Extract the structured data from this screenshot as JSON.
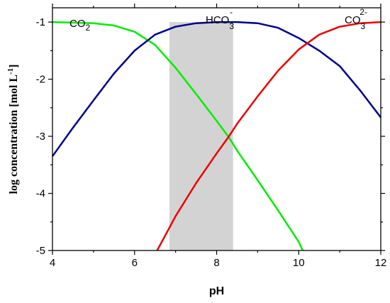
{
  "chart_data": {
    "type": "line",
    "xlabel": "pH",
    "ylabel": {
      "text": "log concentration [mol L",
      "superscript": "-1",
      "suffix": "]"
    },
    "xlim": [
      4,
      12
    ],
    "ylim": [
      -5,
      -0.75
    ],
    "xticks": [
      4,
      6,
      8,
      10,
      12
    ],
    "yticks": [
      -1,
      -2,
      -3,
      -4,
      -5
    ],
    "grid": false,
    "shaded_region": {
      "x": [
        6.85,
        8.4
      ],
      "color": "#d3d3d3"
    },
    "labels": [
      {
        "key": "co2",
        "base": "CO",
        "sub": "2",
        "sup": ""
      },
      {
        "key": "hco3",
        "base": "HCO",
        "sub": "3",
        "sup": "-"
      },
      {
        "key": "co3",
        "base": "CO",
        "sub": "3",
        "sup": "2-"
      }
    ],
    "series": [
      {
        "key": "co2",
        "color": "#00ee00",
        "x": [
          4.0,
          4.5,
          5.0,
          5.5,
          6.0,
          6.5,
          7.0,
          7.5,
          8.0,
          8.3,
          8.5,
          9.0,
          9.5,
          10.0,
          10.1
        ],
        "y": [
          -1.0,
          -1.01,
          -1.02,
          -1.06,
          -1.17,
          -1.4,
          -1.8,
          -2.26,
          -2.73,
          -3.02,
          -3.25,
          -3.77,
          -4.3,
          -4.85,
          -5.0
        ]
      },
      {
        "key": "hco3",
        "color": "#00008b",
        "x": [
          4.0,
          4.5,
          5.0,
          5.5,
          6.0,
          6.5,
          7.0,
          7.5,
          8.0,
          8.5,
          9.0,
          9.5,
          10.0,
          10.5,
          11.0,
          11.5,
          12.0
        ],
        "y": [
          -3.35,
          -2.85,
          -2.37,
          -1.9,
          -1.5,
          -1.22,
          -1.08,
          -1.02,
          -1.0,
          -1.0,
          -1.02,
          -1.1,
          -1.28,
          -1.5,
          -1.77,
          -2.2,
          -2.67
        ]
      },
      {
        "key": "co3",
        "color": "#ee0000",
        "x": [
          6.55,
          7.0,
          7.5,
          8.0,
          8.3,
          8.5,
          9.0,
          9.5,
          10.0,
          10.5,
          11.0,
          11.5,
          12.0
        ],
        "y": [
          -5.0,
          -4.4,
          -3.82,
          -3.3,
          -3.0,
          -2.78,
          -2.3,
          -1.85,
          -1.48,
          -1.22,
          -1.08,
          -1.02,
          -1.0
        ]
      }
    ]
  }
}
